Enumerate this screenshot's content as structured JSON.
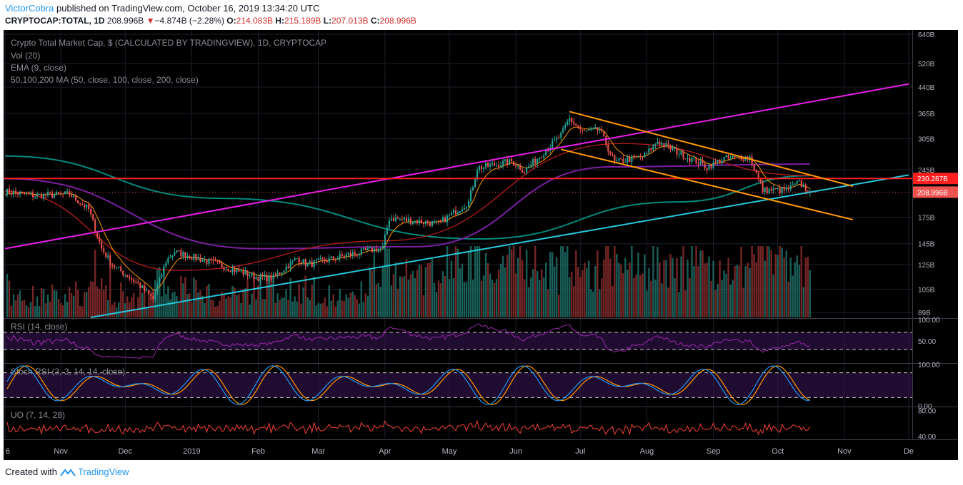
{
  "header": {
    "author": "VictorCobra",
    "published_text": "published on TradingView.com, October 16, 2019 13:34:20 UTC",
    "symbol": "CRYPTOCAP:TOTAL, 1D",
    "last": "208.996B",
    "change_arrow": "▼",
    "change": "−4.874B (−2.28%)",
    "o_label": "O:",
    "o_value": "214.083B",
    "h_label": "H:",
    "h_value": "215.189B",
    "l_label": "L:",
    "l_value": "207.013B",
    "c_label": "C:",
    "c_value": "208.996B"
  },
  "footer": {
    "created_with": "Created with",
    "brand": "TradingView",
    "icon": "tradingview-logo-icon"
  },
  "colors": {
    "background": "#000000",
    "up": "#26a69a",
    "down": "#ef5350",
    "ema": "#ff9800",
    "ma50": "#b71c1c",
    "ma100": "#7b1fa2",
    "ma200": "#00897b",
    "magenta_line": "#e91ee9",
    "cyan_line": "#26c6da",
    "orange_channel": "#ff9800",
    "horizontal_line": "#ff1f1f",
    "rsi": "#9c27b0",
    "stoch_k": "#2196f3",
    "stoch_d": "#ff9800",
    "uo": "#f44336"
  },
  "chart_data": [
    {
      "type": "candlestick",
      "title": "Crypto Total Market Cap, $ (CALCULATED BY TRADINGVIEW), 1D, CRYPTOCAP",
      "indicators": [
        "Vol (20)",
        "EMA (9, close)",
        "50,100,200 MA (50, close, 100, close, 200, close)"
      ],
      "scale": "log",
      "y_ticks": [
        "640B",
        "520B",
        "440B",
        "365B",
        "305B",
        "245B",
        "175B",
        "145B",
        "125B",
        "105B",
        "89B"
      ],
      "y_tick_values": [
        640,
        520,
        440,
        365,
        305,
        245,
        175,
        145,
        125,
        105,
        89
      ],
      "ylim": [
        86,
        660
      ],
      "x_ticks": [
        "6",
        "Nov",
        "Dec",
        "2019",
        "Feb",
        "Mar",
        "Apr",
        "May",
        "Jun",
        "Jul",
        "Aug",
        "Sep",
        "Oct",
        "Nov",
        "De"
      ],
      "x_tick_dates": [
        "2018-10-06",
        "2018-11-01",
        "2018-12-01",
        "2019-01-01",
        "2019-02-01",
        "2019-03-01",
        "2019-04-01",
        "2019-05-01",
        "2019-06-01",
        "2019-07-01",
        "2019-08-01",
        "2019-09-01",
        "2019-10-01",
        "2019-11-01",
        "2019-12-01"
      ],
      "xlim": [
        "2018-10-06",
        "2019-12-01"
      ],
      "price_labels": [
        {
          "text": "230.287B",
          "value": 230.287,
          "color": "#ff1f1f"
        },
        {
          "text": "208.996B",
          "value": 208.996,
          "color": "#ef5350"
        }
      ],
      "close_series_key_points": [
        {
          "date": "2018-10-06",
          "close": 210
        },
        {
          "date": "2018-10-20",
          "close": 204
        },
        {
          "date": "2018-11-05",
          "close": 206
        },
        {
          "date": "2018-11-14",
          "close": 185
        },
        {
          "date": "2018-11-20",
          "close": 140
        },
        {
          "date": "2018-11-25",
          "close": 125
        },
        {
          "date": "2018-12-07",
          "close": 109
        },
        {
          "date": "2018-12-14",
          "close": 98
        },
        {
          "date": "2018-12-20",
          "close": 128
        },
        {
          "date": "2018-12-24",
          "close": 137
        },
        {
          "date": "2019-01-10",
          "close": 127
        },
        {
          "date": "2019-02-01",
          "close": 114
        },
        {
          "date": "2019-02-08",
          "close": 114
        },
        {
          "date": "2019-02-19",
          "close": 131
        },
        {
          "date": "2019-02-24",
          "close": 125
        },
        {
          "date": "2019-03-15",
          "close": 134
        },
        {
          "date": "2019-03-31",
          "close": 141
        },
        {
          "date": "2019-04-03",
          "close": 174
        },
        {
          "date": "2019-04-26",
          "close": 167
        },
        {
          "date": "2019-05-10",
          "close": 195
        },
        {
          "date": "2019-05-14",
          "close": 248
        },
        {
          "date": "2019-05-30",
          "close": 260
        },
        {
          "date": "2019-06-05",
          "close": 243
        },
        {
          "date": "2019-06-22",
          "close": 313
        },
        {
          "date": "2019-06-26",
          "close": 352
        },
        {
          "date": "2019-07-02",
          "close": 320
        },
        {
          "date": "2019-07-10",
          "close": 325
        },
        {
          "date": "2019-07-17",
          "close": 258
        },
        {
          "date": "2019-07-31",
          "close": 270
        },
        {
          "date": "2019-08-06",
          "close": 300
        },
        {
          "date": "2019-08-15",
          "close": 278
        },
        {
          "date": "2019-08-29",
          "close": 250
        },
        {
          "date": "2019-09-06",
          "close": 265
        },
        {
          "date": "2019-09-18",
          "close": 268
        },
        {
          "date": "2019-09-24",
          "close": 212
        },
        {
          "date": "2019-10-05",
          "close": 212
        },
        {
          "date": "2019-10-11",
          "close": 223
        },
        {
          "date": "2019-10-16",
          "close": 208.996
        }
      ],
      "moving_averages": {
        "ma200": [
          {
            "date": "2018-10-06",
            "close": 270
          },
          {
            "date": "2019-01-15",
            "close": 200
          },
          {
            "date": "2019-05-15",
            "close": 150
          },
          {
            "date": "2019-08-15",
            "close": 195
          },
          {
            "date": "2019-10-16",
            "close": 235
          }
        ],
        "ma100": [
          {
            "date": "2018-10-06",
            "close": 230
          },
          {
            "date": "2019-02-01",
            "close": 140
          },
          {
            "date": "2019-04-15",
            "close": 142
          },
          {
            "date": "2019-07-15",
            "close": 250
          },
          {
            "date": "2019-10-16",
            "close": 255
          }
        ],
        "ma50": [
          {
            "date": "2018-10-06",
            "close": 210
          },
          {
            "date": "2018-12-25",
            "close": 120
          },
          {
            "date": "2019-04-01",
            "close": 148
          },
          {
            "date": "2019-07-20",
            "close": 295
          },
          {
            "date": "2019-10-16",
            "close": 235
          }
        ]
      },
      "drawings": [
        {
          "name": "magenta-trendline",
          "from": {
            "date": "2018-10-06",
            "value": 140
          },
          "to": {
            "date": "2019-12-01",
            "value": 450
          }
        },
        {
          "name": "cyan-trendline",
          "from": {
            "date": "2018-11-15",
            "value": 86
          },
          "to": {
            "date": "2019-12-01",
            "value": 236
          }
        },
        {
          "name": "horizontal-resistance",
          "value": 230.287
        },
        {
          "name": "orange-channel-top",
          "from": {
            "date": "2019-06-26",
            "value": 370
          },
          "to": {
            "date": "2019-11-05",
            "value": 218
          }
        },
        {
          "name": "orange-channel-bottom",
          "from": {
            "date": "2019-06-22",
            "value": 283
          },
          "to": {
            "date": "2019-11-05",
            "value": 172
          }
        }
      ],
      "volume_note": "volume bars at bottom of price pane, teal for up days, red for down days"
    },
    {
      "type": "line",
      "title": "RSI (14, close)",
      "y_ticks": [
        "100.00",
        "50.00"
      ],
      "bands": [
        30,
        70
      ],
      "ylim": [
        0,
        100
      ]
    },
    {
      "type": "line",
      "title": "Stoch RSI (3, 3, 14, 14, close)",
      "y_ticks": [
        "100.00",
        "0.00"
      ],
      "bands": [
        20,
        80
      ],
      "ylim": [
        0,
        100
      ]
    },
    {
      "type": "line",
      "title": "UO (7, 14, 28)",
      "y_ticks": [
        "80.00",
        "40.00"
      ],
      "ylim": [
        36,
        84
      ]
    }
  ]
}
